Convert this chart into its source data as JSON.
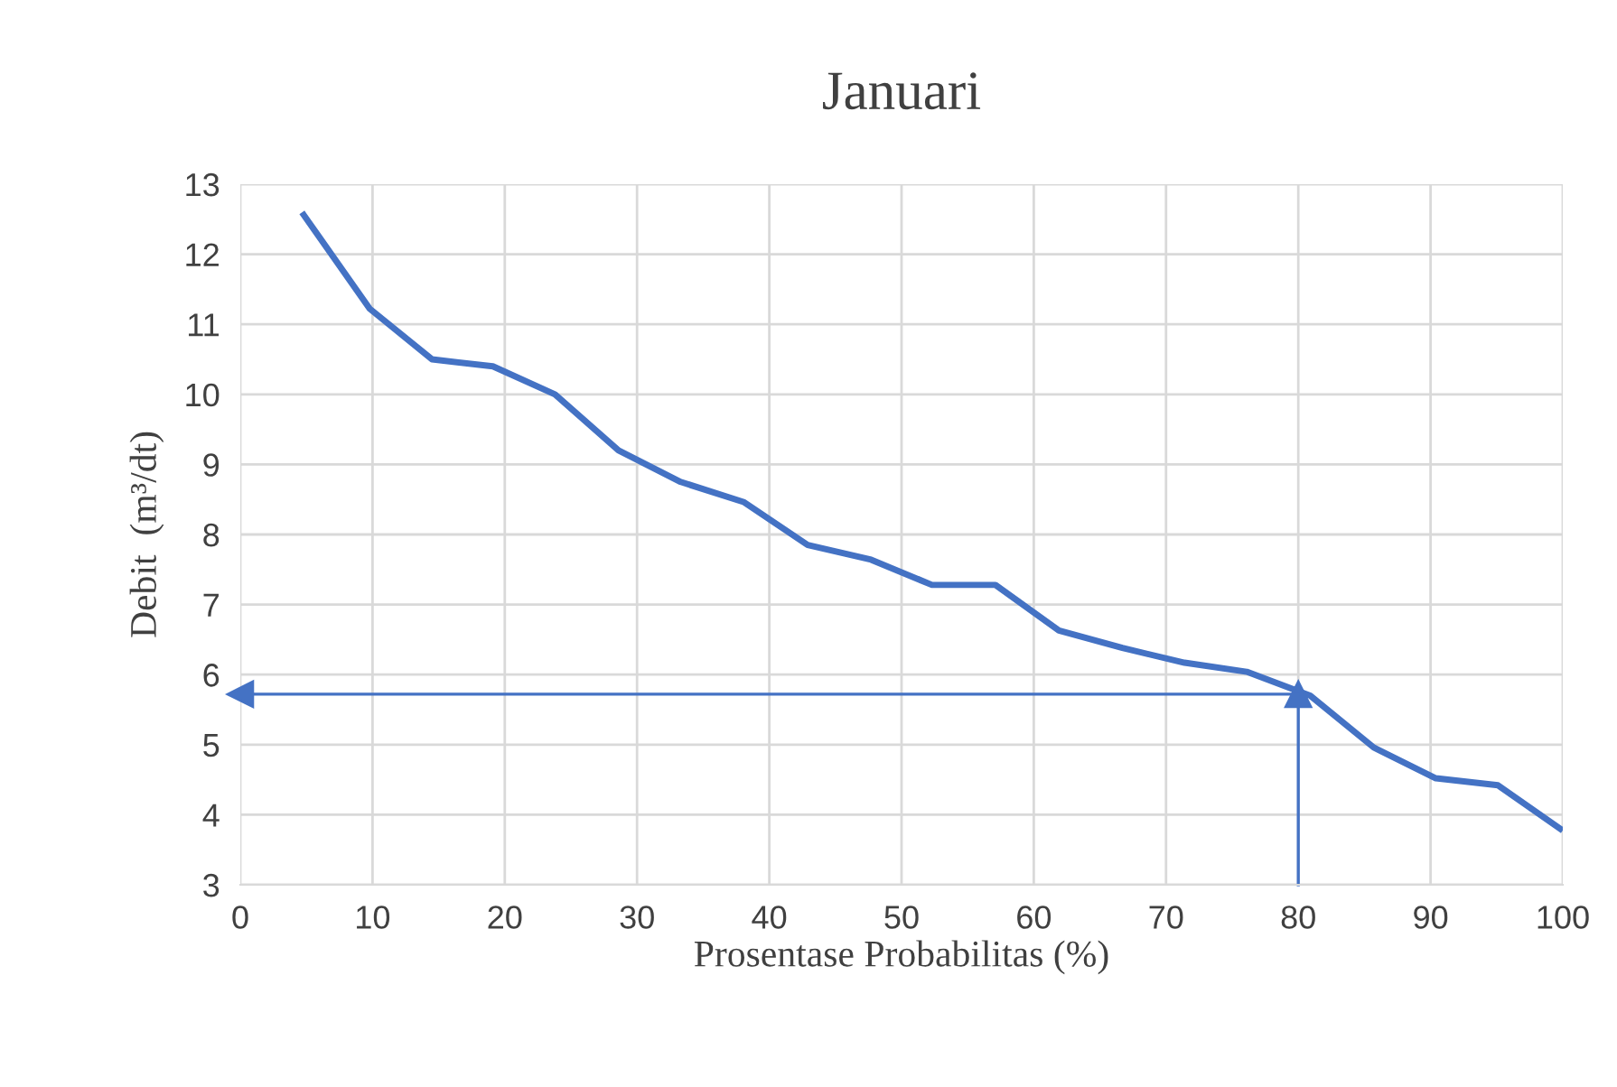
{
  "chart_data": {
    "type": "line",
    "title": "Januari",
    "xlabel": "Prosentase Probabilitas (%)",
    "ylabel": "Debit  (m³/dt)",
    "x": [
      4.8,
      9.8,
      14.5,
      19.1,
      23.8,
      28.6,
      33.3,
      38.1,
      42.9,
      47.7,
      52.3,
      57.1,
      61.9,
      66.7,
      71.4,
      76.1,
      80.9,
      85.7,
      90.4,
      95.1,
      99.8
    ],
    "series": [
      {
        "color": "#4472c4",
        "values": [
          12.56,
          11.22,
          10.5,
          10.4,
          10.0,
          9.2,
          8.75,
          8.46,
          7.85,
          7.64,
          7.28,
          7.28,
          6.63,
          6.38,
          6.17,
          6.04,
          5.7,
          4.96,
          4.52,
          4.42,
          3.8
        ]
      }
    ],
    "xlim": [
      0,
      100
    ],
    "xticks": [
      0,
      10,
      20,
      30,
      40,
      50,
      60,
      70,
      80,
      90,
      100
    ],
    "ylim": [
      3,
      13
    ],
    "yticks": [
      3,
      4,
      5,
      6,
      7,
      8,
      9,
      10,
      11,
      12,
      13
    ],
    "ref_lines": [
      {
        "axis": "x",
        "value": 80,
        "color": "#4472c4"
      },
      {
        "axis": "y",
        "value": 5.72,
        "color": "#4472c4"
      }
    ],
    "grid": true,
    "legend": false,
    "marker": "none",
    "line_style": "solid"
  }
}
